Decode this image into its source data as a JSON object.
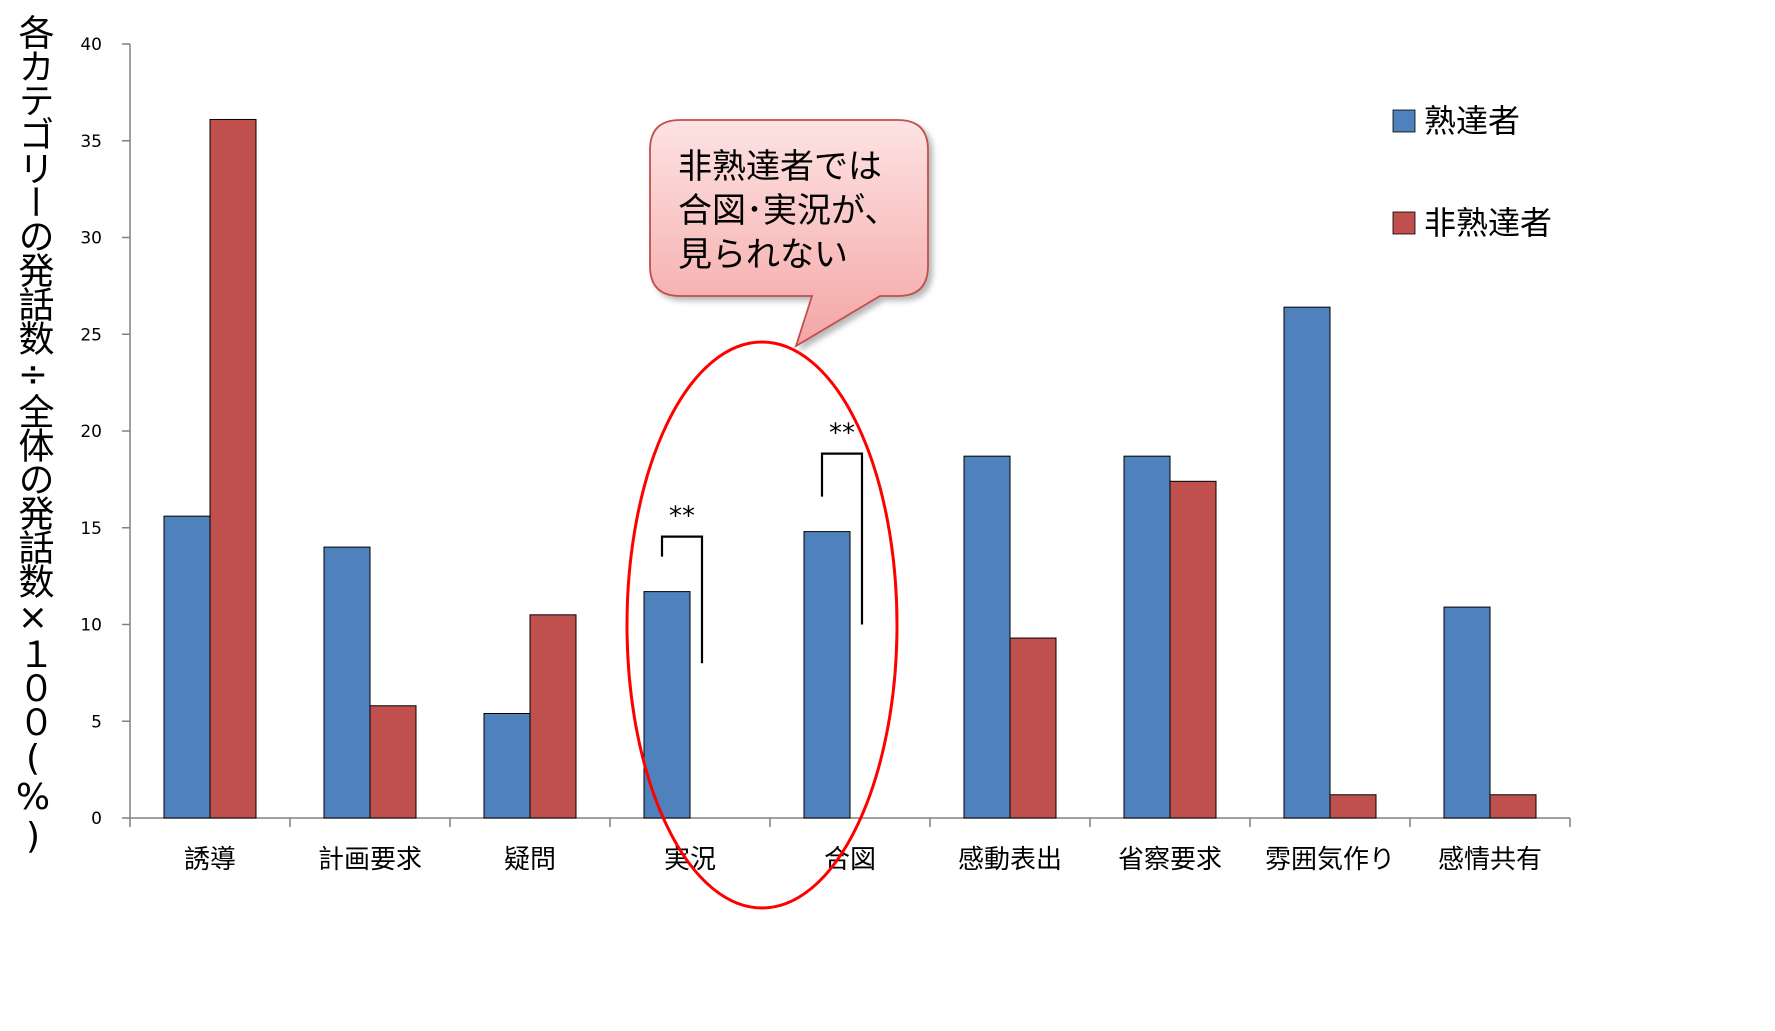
{
  "chart_data": {
    "type": "bar",
    "title": "",
    "xlabel": "",
    "ylabel": "各カテゴリーの発話数÷全体の発話数×１００(%)",
    "ylim": [
      0,
      40
    ],
    "y_ticks": [
      0,
      5,
      10,
      15,
      20,
      25,
      30,
      35,
      40
    ],
    "categories": [
      "誘導",
      "計画要求",
      "疑問",
      "実況",
      "合図",
      "感動表出",
      "省察要求",
      "雰囲気作り",
      "感情共有"
    ],
    "series": [
      {
        "name": "熟達者",
        "color": "#4F81BD",
        "values": [
          15.6,
          14.0,
          5.4,
          11.7,
          14.8,
          18.7,
          18.7,
          26.4,
          10.9
        ]
      },
      {
        "name": "非熟達者",
        "color": "#C0504D",
        "values": [
          36.1,
          5.8,
          10.5,
          0,
          0,
          9.3,
          17.4,
          1.2,
          1.2
        ]
      }
    ],
    "legend_position": "top-right",
    "grid": false,
    "significance_marks": [
      {
        "category": "実況",
        "label": "**"
      },
      {
        "category": "合図",
        "label": "**"
      }
    ],
    "callout": {
      "lines": [
        "非熟達者では",
        "合図･実況が、",
        "見られない"
      ],
      "fill": "#F9B9B9",
      "border": "#C0504D"
    },
    "highlight_ellipse": {
      "categories": [
        "実況",
        "合図"
      ],
      "color": "#FF0000"
    }
  }
}
